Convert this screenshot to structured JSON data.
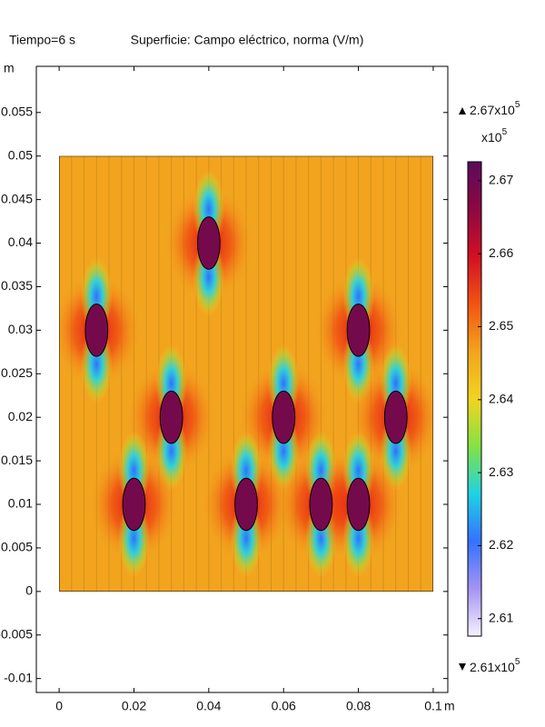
{
  "chart_data": {
    "type": "surface",
    "title": "Superficie: Campo eléctrico, norma (V/m)",
    "time_label": "Tiempo=6 s",
    "x_unit": "m",
    "y_unit": "m",
    "xlim": [
      -0.0061,
      0.1039
    ],
    "xticks": [
      0,
      0.02,
      0.04,
      0.06,
      0.08,
      0.1
    ],
    "ylim": [
      -0.0116,
      0.0603
    ],
    "yticks": [
      -0.01,
      -0.005,
      0,
      0.005,
      0.01,
      0.015,
      0.02,
      0.025,
      0.03,
      0.035,
      0.04,
      0.045,
      0.05,
      0.055
    ],
    "domain": {
      "x": [
        0,
        0.1
      ],
      "y": [
        0,
        0.05
      ]
    },
    "inclusions": {
      "x": [
        0.01,
        0.04,
        0.08,
        0.03,
        0.06,
        0.09,
        0.02,
        0.05,
        0.07,
        0.08
      ],
      "y": [
        0.03,
        0.04,
        0.03,
        0.02,
        0.02,
        0.02,
        0.01,
        0.01,
        0.01,
        0.01
      ],
      "radius": 0.003,
      "color": "#740a4c"
    },
    "field_color": "#f2a41e",
    "colorbar": {
      "lim": [
        2.6076,
        2.6726
      ],
      "ticks": [
        2.61,
        2.62,
        2.63,
        2.64,
        2.65,
        2.66,
        2.67
      ],
      "colormap": [
        "#f6f2ff",
        "#a494f2",
        "#3472ff",
        "#20d2e4",
        "#84e244",
        "#f2d420",
        "#f2a41e",
        "#f25412",
        "#d21024",
        "#8c0842",
        "#5c0a5c"
      ],
      "multiplier": {
        "base": "x10",
        "exponent": "5"
      },
      "max_label": {
        "base": "2.67x10",
        "exponent": "5"
      },
      "min_label": {
        "base": "2.61x10",
        "exponent": "5"
      }
    }
  }
}
